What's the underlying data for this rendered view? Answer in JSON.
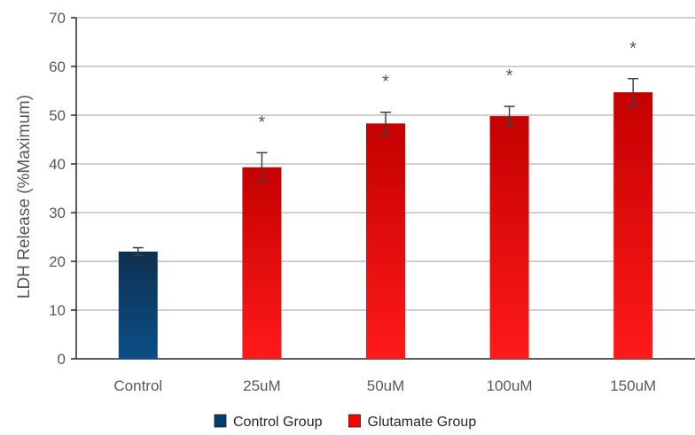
{
  "chart_data": {
    "type": "bar",
    "title": "",
    "xlabel": "",
    "ylabel": "LDH Release (%Maximum)",
    "ylim": [
      0,
      70
    ],
    "yticks": [
      0,
      10,
      20,
      30,
      40,
      50,
      60,
      70
    ],
    "grid": true,
    "legend_position": "bottom",
    "categories": [
      "Control",
      "25uM",
      "50uM",
      "100uM",
      "150uM"
    ],
    "values": [
      22,
      39.3,
      48.3,
      49.8,
      54.7
    ],
    "errors": [
      0.8,
      3.0,
      2.3,
      2.0,
      2.8
    ],
    "groups": [
      "Control Group",
      "Glutamate Group",
      "Glutamate Group",
      "Glutamate Group",
      "Glutamate Group"
    ],
    "significance": [
      "",
      "*",
      "*",
      "*",
      "*"
    ],
    "legend": [
      {
        "name": "Control Group",
        "color": "#003f6f"
      },
      {
        "name": "Glutamate Group",
        "color": "#ff0000"
      }
    ],
    "colors": {
      "control_top": "#0f2f50",
      "control_bottom": "#0a4f86",
      "glutamate_top": "#c40000",
      "glutamate_bottom": "#ff1a1a",
      "grid": "#bfbfbf",
      "axis": "#262626"
    }
  }
}
